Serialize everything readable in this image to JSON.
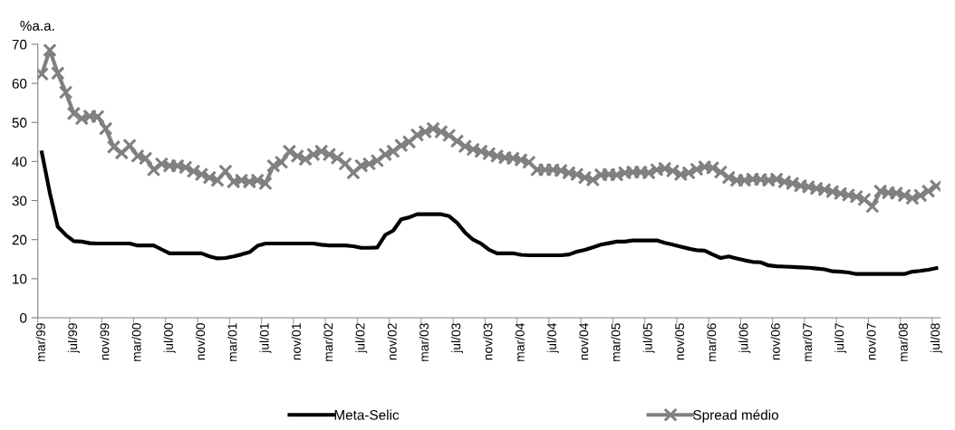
{
  "chart_data": {
    "type": "line",
    "ylabel": "%a.a.",
    "categories": [
      "mar/99",
      null,
      null,
      null,
      "jul/99",
      null,
      null,
      null,
      "nov/99",
      null,
      null,
      null,
      "mar/00",
      null,
      null,
      null,
      "jul/00",
      null,
      null,
      null,
      "nov/00",
      null,
      null,
      null,
      "mar/01",
      null,
      null,
      null,
      "jul/01",
      null,
      null,
      null,
      "nov/01",
      null,
      null,
      null,
      "mar/02",
      null,
      null,
      null,
      "jul/02",
      null,
      null,
      null,
      "nov/02",
      null,
      null,
      null,
      "mar/03",
      null,
      null,
      null,
      "jul/03",
      null,
      null,
      null,
      "nov/03",
      null,
      null,
      null,
      "mar/04",
      null,
      null,
      null,
      "jul/04",
      null,
      null,
      null,
      "nov/04",
      null,
      null,
      null,
      "mar/05",
      null,
      null,
      null,
      "jul/05",
      null,
      null,
      null,
      "nov/05",
      null,
      null,
      null,
      "mar/06",
      null,
      null,
      null,
      "jul/06",
      null,
      null,
      null,
      "nov/06",
      null,
      null,
      null,
      "mar/07",
      null,
      null,
      null,
      "jul/07",
      null,
      null,
      null,
      "nov/07",
      null,
      null,
      null,
      "mar/08",
      null,
      null,
      null,
      "jul/08"
    ],
    "series": [
      {
        "name": "Meta-Selic",
        "color": "#000000",
        "marker": "none",
        "values": [
          42.3,
          32,
          23.3,
          21.2,
          19.6,
          19.5,
          19.1,
          19,
          19,
          19,
          19,
          19,
          18.5,
          18.5,
          18.5,
          17.5,
          16.5,
          16.5,
          16.5,
          16.5,
          16.5,
          15.7,
          15.2,
          15.3,
          15.7,
          16.2,
          16.8,
          18.4,
          19,
          19,
          19,
          19,
          19,
          19,
          19,
          18.7,
          18.5,
          18.5,
          18.5,
          18.3,
          17.9,
          17.9,
          18,
          21.2,
          22.3,
          25.2,
          25.7,
          26.5,
          26.5,
          26.5,
          26.5,
          26,
          24.3,
          21.8,
          20,
          19,
          17.4,
          16.5,
          16.5,
          16.5,
          16.1,
          16,
          16,
          16,
          16,
          16,
          16.2,
          16.9,
          17.4,
          18,
          18.7,
          19.1,
          19.5,
          19.5,
          19.8,
          19.8,
          19.8,
          19.8,
          19.2,
          18.7,
          18.2,
          17.7,
          17.3,
          17.2,
          16.2,
          15.3,
          15.7,
          15.2,
          14.7,
          14.3,
          14.2,
          13.4,
          13.2,
          13.1,
          13,
          12.9,
          12.8,
          12.6,
          12.4,
          11.9,
          11.8,
          11.6,
          11.2,
          11.2,
          11.2,
          11.2,
          11.2,
          11.2,
          11.2,
          11.8,
          12,
          12.3,
          12.7
        ]
      },
      {
        "name": "Spread médio",
        "color": "#808080",
        "marker": "cross",
        "values": [
          62.4,
          68.5,
          62.6,
          57.7,
          52.3,
          51.0,
          51.6,
          51.5,
          48.4,
          43.7,
          42.2,
          44.1,
          41.4,
          40.8,
          37.9,
          39.4,
          38.9,
          38.9,
          38.5,
          37.5,
          36.7,
          35.9,
          35.2,
          37.5,
          34.8,
          35.2,
          34.8,
          35.2,
          34.4,
          38.9,
          39.8,
          42.6,
          41.4,
          40.6,
          41.8,
          42.6,
          41.8,
          40.9,
          39.4,
          37.1,
          38.9,
          39.4,
          40.2,
          41.8,
          42.6,
          44.1,
          45.0,
          46.8,
          47.6,
          48.4,
          47.6,
          46.7,
          45.2,
          43.9,
          43.1,
          42.6,
          42.0,
          41.4,
          41.0,
          40.8,
          40.4,
          39.8,
          37.9,
          37.9,
          37.9,
          37.7,
          37.1,
          36.7,
          35.9,
          35.3,
          36.6,
          36.7,
          36.6,
          37.1,
          37.3,
          37.3,
          37.1,
          37.9,
          38.2,
          37.6,
          36.7,
          37.1,
          38.0,
          38.6,
          38.4,
          37.3,
          35.9,
          35.2,
          35.2,
          35.5,
          35.4,
          35.2,
          35.5,
          34.8,
          34.4,
          33.8,
          33.5,
          33.1,
          32.8,
          32.3,
          31.8,
          31.4,
          31.0,
          30.3,
          28.5,
          32.4,
          32.0,
          31.9,
          31.3,
          30.6,
          31.3,
          32.4,
          33.7
        ]
      }
    ],
    "ylim": [
      0,
      70
    ],
    "yticks": [
      0,
      10,
      20,
      30,
      40,
      50,
      60,
      70
    ],
    "grid": false,
    "legend": "bottom",
    "line_style": "solid"
  }
}
